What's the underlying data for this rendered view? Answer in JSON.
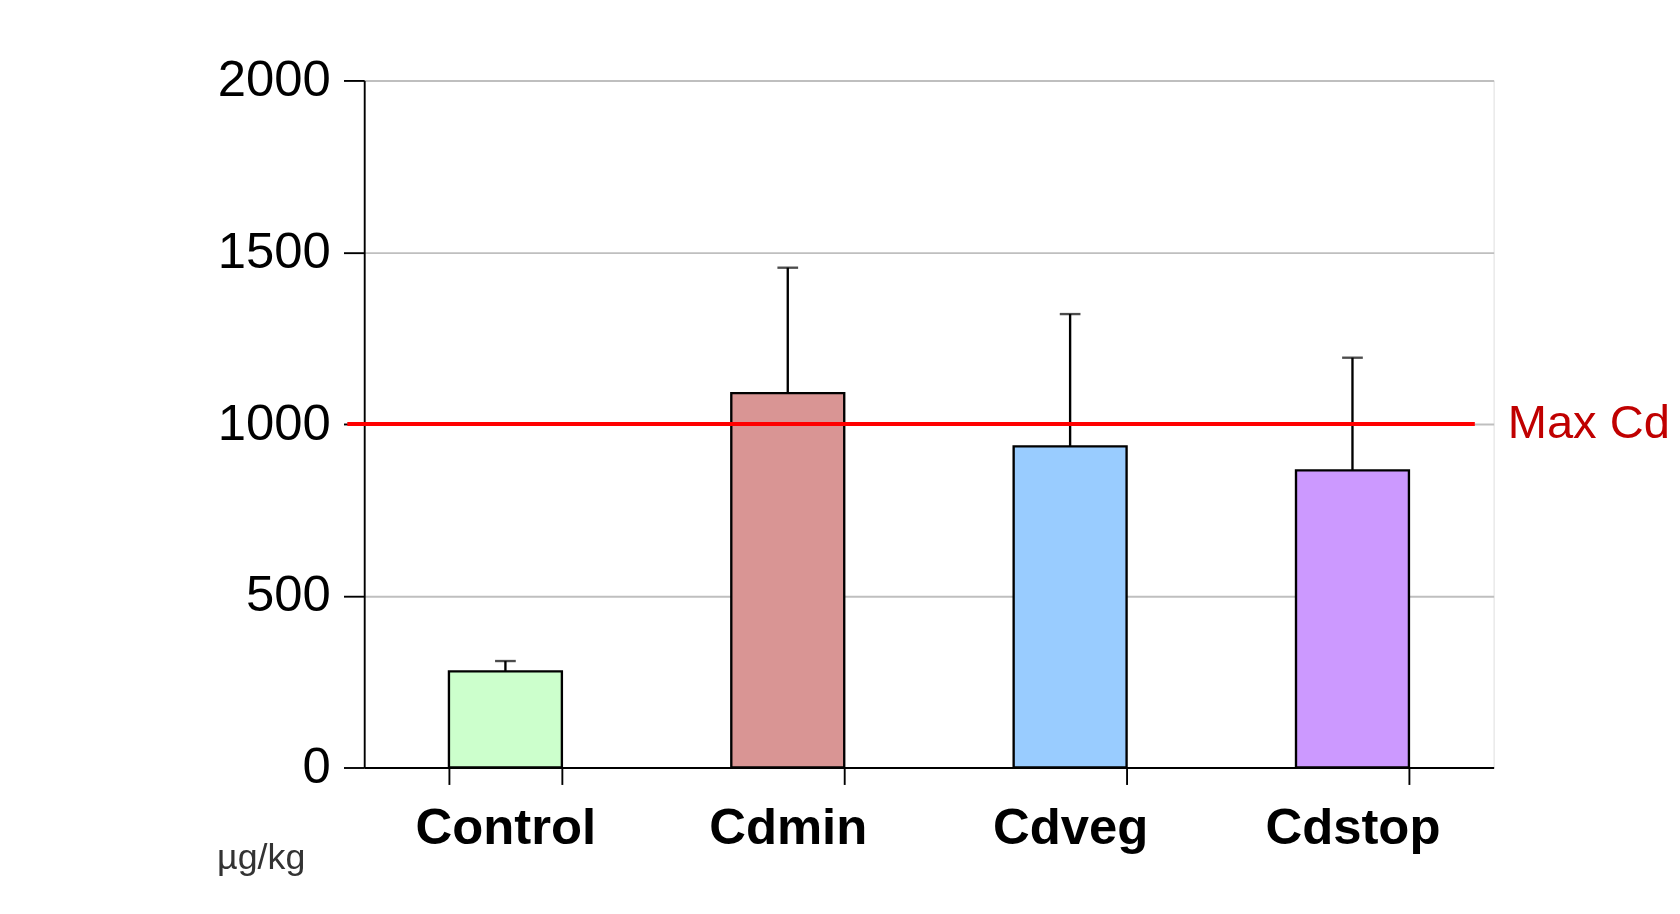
{
  "chart_data": {
    "type": "bar",
    "ylabel": "µg/kg",
    "categories": [
      "Control",
      "Cdmin",
      "Cdveg",
      "Cdstop"
    ],
    "values": [
      280,
      1090,
      935,
      865
    ],
    "errors": [
      30,
      365,
      385,
      328
    ],
    "colors": [
      "#ccffcc",
      "#d99594",
      "#99ccff",
      "#cc99ff"
    ],
    "ylim": [
      0,
      2000
    ],
    "yticks": [
      0,
      500,
      1000,
      1500,
      2000
    ],
    "grid": "y",
    "ref_lines": [
      {
        "axis": "y",
        "value": 1000,
        "label": "Max Cd",
        "color": "#ff0000"
      }
    ]
  }
}
